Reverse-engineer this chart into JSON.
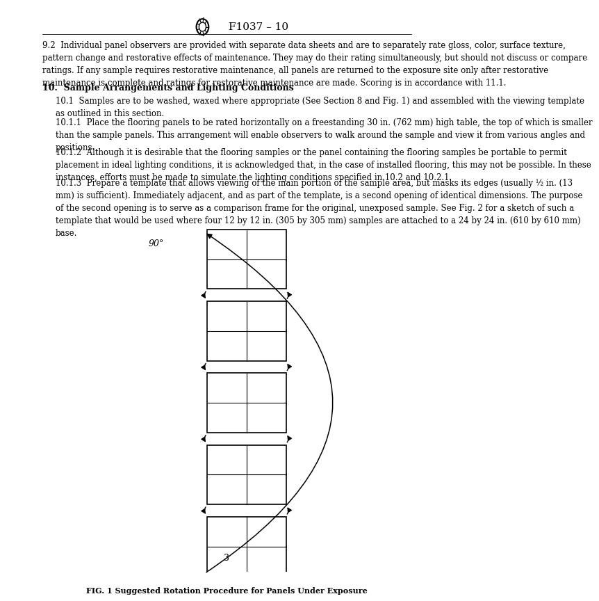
{
  "title": "F1037 – 10",
  "page_number": "3",
  "fig_caption": "FIG. 1 Suggested Rotation Procedure for Panels Under Exposure",
  "background_color": "#ffffff",
  "text_color": "#000000",
  "font_size_body": 8.5,
  "font_size_section": 9.0,
  "para_92": "9.2  Individual panel observers are provided with separate data sheets and are to separately rate gloss, color, surface texture,\npattern change and restorative effects of maintenance. They may do their rating simultaneously, but should not discuss or compare\nratings. If any sample requires restorative maintenance, all panels are returned to the exposure site only after restorative\nmaintenance is complete and ratings for restorative maintenance are made. Scoring is in accordance with 11.1.",
  "section_10_title": "10.  Sample Arrangements and Lighting Conditions",
  "para_101": "10.1  Samples are to be washed, waxed where appropriate (See Section 8 and Fig. 1) and assembled with the viewing template\nas outlined in this section.",
  "para_1011": "10.1.1  Place the flooring panels to be rated horizontally on a freestanding 30 in. (762 mm) high table, the top of which is smaller\nthan the sample panels. This arrangement will enable observers to walk around the sample and view it from various angles and\npositions.",
  "para_1012": "10.1.2  Although it is desirable that the flooring samples or the panel containing the flooring samples be portable to permit\nplacement in ideal lighting conditions, it is acknowledged that, in the case of installed flooring, this may not be possible. In these\ninstances, efforts must be made to simulate the lighting conditions specified in 10.2 and 10.2.1.",
  "para_1013": "10.1.3  Prepare a template that allows viewing of the main portion of the sample area, but masks its edges (usually ½ in. (13\nmm) is sufficient). Immediately adjacent, and as part of the template, is a second opening of identical dimensions. The purpose\nof the second opening is to serve as a comparison frame for the original, unexposed sample. See Fig. 2 for a sketch of such a\ntemplate that would be used where four 12 by 12 in. (305 by 305 mm) samples are attached to a 24 by 24 in. (610 by 610 mm)\nbase."
}
